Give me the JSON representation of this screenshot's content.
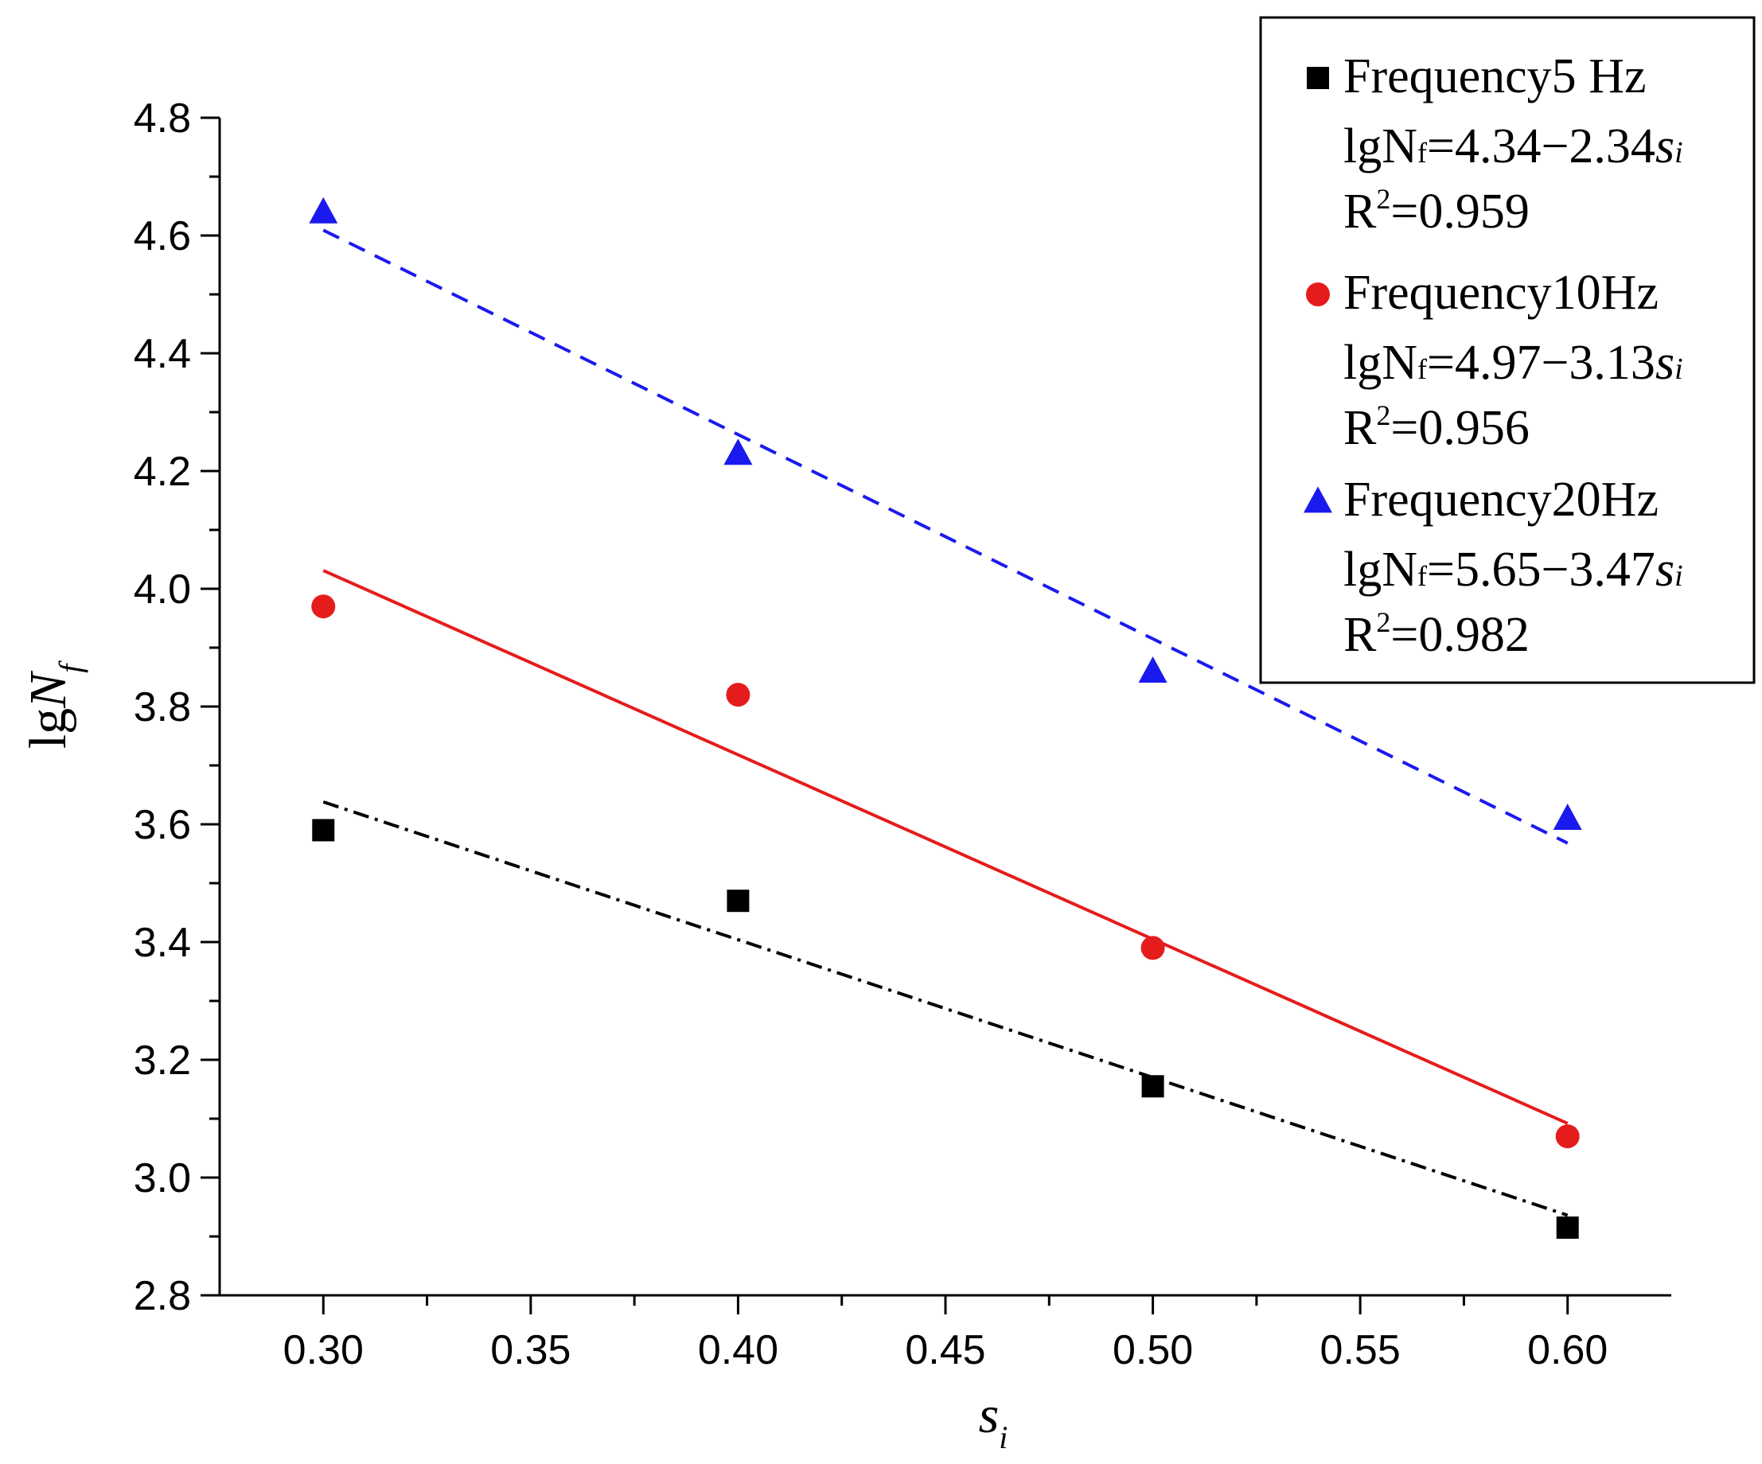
{
  "chart_data": {
    "type": "scatter",
    "title": "",
    "xlabel": "s",
    "xlabel_sub": "i",
    "ylabel": "lgN",
    "ylabel_sub": "f",
    "xlim": [
      0.275,
      0.625
    ],
    "ylim": [
      2.8,
      4.8
    ],
    "xticks": [
      0.3,
      0.35,
      0.4,
      0.45,
      0.5,
      0.55,
      0.6
    ],
    "xtick_labels": [
      "0.30",
      "0.35",
      "0.40",
      "0.45",
      "0.50",
      "0.55",
      "0.60"
    ],
    "yticks": [
      2.8,
      3.0,
      3.2,
      3.4,
      3.6,
      3.8,
      4.0,
      4.2,
      4.4,
      4.6,
      4.8
    ],
    "ytick_labels": [
      "2.8",
      "3.0",
      "3.2",
      "3.4",
      "3.6",
      "3.8",
      "4.0",
      "4.2",
      "4.4",
      "4.6",
      "4.8"
    ],
    "grid": false,
    "legend_position": "top-right",
    "series": [
      {
        "name": "Frequency5 Hz",
        "marker": "square",
        "color": "#000000",
        "line_style": "dash-dot",
        "x": [
          0.3,
          0.4,
          0.5,
          0.6
        ],
        "y": [
          3.59,
          3.47,
          3.155,
          2.915
        ],
        "fit": {
          "intercept": 4.34,
          "slope": -2.34,
          "x_range": [
            0.3,
            0.6
          ]
        },
        "equation": {
          "prefix": "lgN",
          "sub": "f",
          "body": "=4.34−2.34",
          "var": "s",
          "var_sub": "i"
        },
        "r2": {
          "prefix": "R",
          "sup": "2",
          "body": "=0.959"
        }
      },
      {
        "name": "Frequency10Hz",
        "marker": "circle",
        "color": "#e51c1c",
        "line_style": "solid",
        "x": [
          0.3,
          0.4,
          0.5,
          0.6
        ],
        "y": [
          3.97,
          3.82,
          3.39,
          3.07
        ],
        "fit": {
          "intercept": 4.97,
          "slope": -3.13,
          "x_range": [
            0.3,
            0.6
          ]
        },
        "equation": {
          "prefix": "lgN",
          "sub": "f",
          "body": "=4.97−3.13",
          "var": "s",
          "var_sub": "i"
        },
        "r2": {
          "prefix": "R",
          "sup": "2",
          "body": "=0.956"
        }
      },
      {
        "name": "Frequency20Hz",
        "marker": "triangle",
        "color": "#1a1aee",
        "line_style": "dashed",
        "x": [
          0.3,
          0.4,
          0.5,
          0.6
        ],
        "y": [
          4.64,
          4.23,
          3.86,
          3.61
        ],
        "fit": {
          "intercept": 5.65,
          "slope": -3.47,
          "x_range": [
            0.3,
            0.6
          ]
        },
        "equation": {
          "prefix": "lgN",
          "sub": "f",
          "body": "=5.65−3.47",
          "var": "s",
          "var_sub": "i"
        },
        "r2": {
          "prefix": "R",
          "sup": "2",
          "body": "=0.982"
        }
      }
    ]
  }
}
